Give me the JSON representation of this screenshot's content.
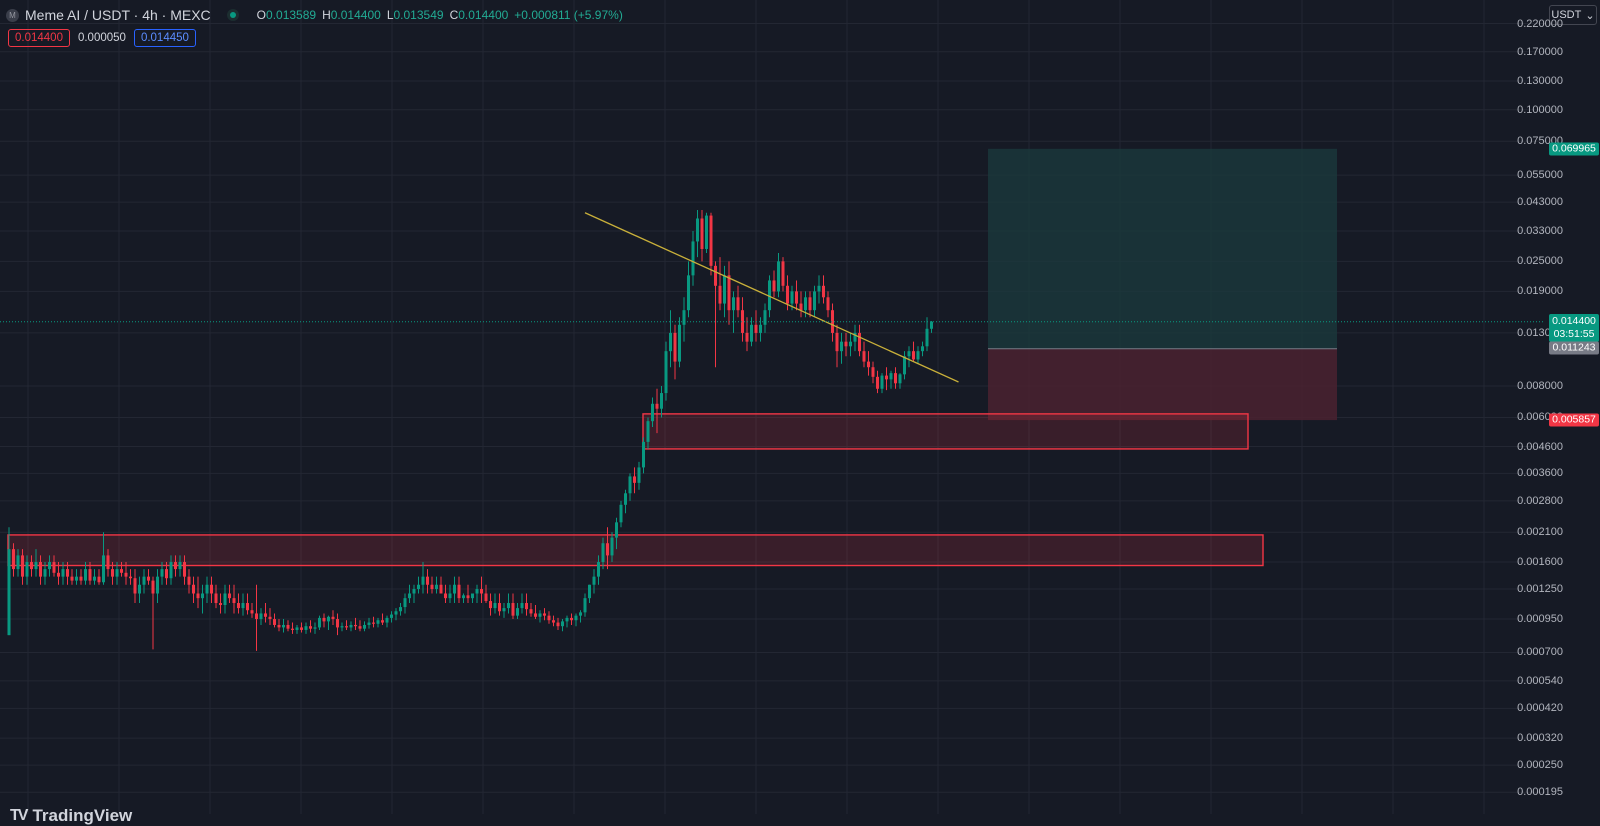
{
  "header": {
    "logo_letter": "M",
    "symbol_title": "Meme AI / USDT · 4h · MEXC",
    "ohlc": {
      "o_label": "O",
      "o_value": "0.013589",
      "h_label": "H",
      "h_value": "0.014400",
      "l_label": "L",
      "l_value": "0.013549",
      "c_label": "C",
      "c_value": "0.014400",
      "change": "+0.000811 (+5.97%)"
    }
  },
  "trade": {
    "sell_price": "0.014400",
    "spread": "0.000050",
    "buy_price": "0.014450"
  },
  "currency": {
    "label": "USDT",
    "arrow": "⌄"
  },
  "watermark": {
    "text": "TradingView"
  },
  "price_axis": {
    "labels": [
      "0.220000",
      "0.170000",
      "0.130000",
      "0.100000",
      "0.075000",
      "0.055000",
      "0.043000",
      "0.033000",
      "0.025000",
      "0.019000",
      "0.013000",
      "0.008000",
      "0.006000",
      "0.004600",
      "0.003600",
      "0.002800",
      "0.002100",
      "0.001600",
      "0.001250",
      "0.000950",
      "0.000700",
      "0.000540",
      "0.000420",
      "0.000320",
      "0.000250",
      "0.000195"
    ],
    "tags": {
      "target": "0.069965",
      "last_price": "0.014400",
      "countdown": "03:51:55",
      "entry": "0.011243",
      "stop": "0.005857"
    }
  },
  "colors": {
    "background": "#161a25",
    "up": "#089981",
    "down": "#f23645",
    "trendline": "#c9b03a",
    "zone_stroke": "#f23645",
    "profit_zone": "#1b3b3e",
    "loss_zone": "#4a2230"
  },
  "chart_data": {
    "type": "candlestick",
    "scale": "log",
    "ylim": [
      0.000185,
      0.24
    ],
    "candles": [
      [
        0.00082,
        0.0022,
        0.00082,
        0.0018
      ],
      [
        0.0018,
        0.0019,
        0.0014,
        0.0015
      ],
      [
        0.0015,
        0.0018,
        0.0014,
        0.0017
      ],
      [
        0.0017,
        0.0018,
        0.0013,
        0.0014
      ],
      [
        0.0014,
        0.0017,
        0.0013,
        0.0016
      ],
      [
        0.0016,
        0.0017,
        0.0014,
        0.0015
      ],
      [
        0.0015,
        0.0018,
        0.0014,
        0.0016
      ],
      [
        0.0016,
        0.0017,
        0.0013,
        0.0014
      ],
      [
        0.0014,
        0.0016,
        0.0013,
        0.0015
      ],
      [
        0.0015,
        0.0017,
        0.0014,
        0.0016
      ],
      [
        0.0016,
        0.0017,
        0.0014,
        0.00145
      ],
      [
        0.00145,
        0.0016,
        0.0013,
        0.0014
      ],
      [
        0.0014,
        0.0016,
        0.0013,
        0.0015
      ],
      [
        0.0015,
        0.0016,
        0.0013,
        0.0014
      ],
      [
        0.0014,
        0.0015,
        0.0013,
        0.00135
      ],
      [
        0.00135,
        0.0015,
        0.0013,
        0.0014
      ],
      [
        0.0014,
        0.0015,
        0.0013,
        0.00135
      ],
      [
        0.00135,
        0.0016,
        0.0013,
        0.0015
      ],
      [
        0.0015,
        0.0016,
        0.0013,
        0.00135
      ],
      [
        0.00135,
        0.0015,
        0.0013,
        0.0014
      ],
      [
        0.0014,
        0.0015,
        0.0013,
        0.00133
      ],
      [
        0.00133,
        0.0021,
        0.0013,
        0.0017
      ],
      [
        0.0017,
        0.0018,
        0.0014,
        0.0015
      ],
      [
        0.0015,
        0.0016,
        0.0013,
        0.0014
      ],
      [
        0.0014,
        0.0016,
        0.0013,
        0.0015
      ],
      [
        0.0015,
        0.0016,
        0.0014,
        0.00145
      ],
      [
        0.00145,
        0.0016,
        0.0013,
        0.0014
      ],
      [
        0.0014,
        0.0015,
        0.0013,
        0.00138
      ],
      [
        0.00138,
        0.0015,
        0.0011,
        0.0012
      ],
      [
        0.0012,
        0.0014,
        0.0011,
        0.0013
      ],
      [
        0.0013,
        0.0015,
        0.0012,
        0.0014
      ],
      [
        0.0014,
        0.0015,
        0.0013,
        0.00135
      ],
      [
        0.00135,
        0.0014,
        0.00072,
        0.0012
      ],
      [
        0.0012,
        0.0015,
        0.0011,
        0.0014
      ],
      [
        0.0014,
        0.0016,
        0.0013,
        0.0015
      ],
      [
        0.0015,
        0.0016,
        0.0013,
        0.00138
      ],
      [
        0.00138,
        0.0017,
        0.0013,
        0.0016
      ],
      [
        0.0016,
        0.0017,
        0.0014,
        0.0015
      ],
      [
        0.0015,
        0.0017,
        0.0014,
        0.0016
      ],
      [
        0.0016,
        0.0017,
        0.0013,
        0.0014
      ],
      [
        0.0014,
        0.0015,
        0.0012,
        0.0013
      ],
      [
        0.0013,
        0.0014,
        0.0011,
        0.0012
      ],
      [
        0.0012,
        0.0014,
        0.00105,
        0.00115
      ],
      [
        0.00115,
        0.0013,
        0.001,
        0.0012
      ],
      [
        0.0012,
        0.0014,
        0.0011,
        0.0013
      ],
      [
        0.0013,
        0.0014,
        0.0011,
        0.0012
      ],
      [
        0.0012,
        0.0013,
        0.00105,
        0.0011
      ],
      [
        0.0011,
        0.0012,
        0.001,
        0.00108
      ],
      [
        0.00108,
        0.0013,
        0.001,
        0.0012
      ],
      [
        0.0012,
        0.0013,
        0.0011,
        0.00115
      ],
      [
        0.00115,
        0.0013,
        0.001,
        0.0011
      ],
      [
        0.0011,
        0.0012,
        0.001,
        0.00105
      ],
      [
        0.00105,
        0.0012,
        0.00098,
        0.0011
      ],
      [
        0.0011,
        0.0012,
        0.00099,
        0.00103
      ],
      [
        0.00103,
        0.0011,
        0.00096,
        0.001
      ],
      [
        0.001,
        0.0013,
        0.00071,
        0.00095
      ],
      [
        0.00095,
        0.00105,
        0.0009,
        0.001
      ],
      [
        0.001,
        0.0011,
        0.00092,
        0.00097
      ],
      [
        0.00097,
        0.00105,
        0.0009,
        0.00095
      ],
      [
        0.00095,
        0.001,
        0.00088,
        0.0009
      ],
      [
        0.0009,
        0.00095,
        0.00085,
        0.00088
      ],
      [
        0.00088,
        0.00095,
        0.00084,
        0.0009
      ],
      [
        0.0009,
        0.00094,
        0.00085,
        0.00087
      ],
      [
        0.00087,
        0.00092,
        0.00083,
        0.00086
      ],
      [
        0.00086,
        0.0009,
        0.00083,
        0.00088
      ],
      [
        0.00088,
        0.00092,
        0.00084,
        0.00086
      ],
      [
        0.00086,
        0.00092,
        0.00083,
        0.00089
      ],
      [
        0.00089,
        0.00094,
        0.00084,
        0.00087
      ],
      [
        0.00087,
        0.00092,
        0.00083,
        0.00088
      ],
      [
        0.00088,
        0.00098,
        0.00086,
        0.00096
      ],
      [
        0.00096,
        0.001,
        0.00088,
        0.00093
      ],
      [
        0.00093,
        0.00098,
        0.00086,
        0.00097
      ],
      [
        0.00097,
        0.00103,
        0.0009,
        0.00095
      ],
      [
        0.00095,
        0.001,
        0.00082,
        0.00088
      ],
      [
        0.00088,
        0.00092,
        0.00085,
        0.00089
      ],
      [
        0.00089,
        0.00094,
        0.00086,
        0.00088
      ],
      [
        0.00088,
        0.00093,
        0.00085,
        0.0009
      ],
      [
        0.0009,
        0.00096,
        0.00086,
        0.00089
      ],
      [
        0.00089,
        0.00094,
        0.00085,
        0.00087
      ],
      [
        0.00087,
        0.00093,
        0.00085,
        0.0009
      ],
      [
        0.0009,
        0.00096,
        0.00087,
        0.00092
      ],
      [
        0.00092,
        0.00097,
        0.00088,
        0.00091
      ],
      [
        0.00091,
        0.00096,
        0.00088,
        0.00094
      ],
      [
        0.00094,
        0.001,
        0.0009,
        0.00092
      ],
      [
        0.00092,
        0.00098,
        0.00088,
        0.00096
      ],
      [
        0.00096,
        0.00102,
        0.00092,
        0.00099
      ],
      [
        0.00099,
        0.00105,
        0.00094,
        0.00102
      ],
      [
        0.00102,
        0.0011,
        0.00098,
        0.00106
      ],
      [
        0.00106,
        0.0012,
        0.001,
        0.00115
      ],
      [
        0.00115,
        0.0013,
        0.0011,
        0.0012
      ],
      [
        0.0012,
        0.0013,
        0.0011,
        0.00125
      ],
      [
        0.00125,
        0.0014,
        0.0012,
        0.0013
      ],
      [
        0.0013,
        0.0016,
        0.0012,
        0.0014
      ],
      [
        0.0014,
        0.0015,
        0.0012,
        0.0013
      ],
      [
        0.0013,
        0.0014,
        0.0012,
        0.00125
      ],
      [
        0.00125,
        0.0014,
        0.0012,
        0.0013
      ],
      [
        0.0013,
        0.0014,
        0.0012,
        0.0012
      ],
      [
        0.0012,
        0.0013,
        0.0011,
        0.00115
      ],
      [
        0.00115,
        0.0013,
        0.0011,
        0.0012
      ],
      [
        0.0012,
        0.0014,
        0.0011,
        0.0013
      ],
      [
        0.0013,
        0.0014,
        0.0011,
        0.00115
      ],
      [
        0.00115,
        0.0012,
        0.0011,
        0.00118
      ],
      [
        0.00118,
        0.0013,
        0.0011,
        0.00115
      ],
      [
        0.00115,
        0.0012,
        0.0011,
        0.0012
      ],
      [
        0.0012,
        0.0013,
        0.0011,
        0.00125
      ],
      [
        0.00125,
        0.0014,
        0.0011,
        0.0012
      ],
      [
        0.0012,
        0.0013,
        0.0011,
        0.00112
      ],
      [
        0.00112,
        0.0012,
        0.00098,
        0.00105
      ],
      [
        0.00105,
        0.0012,
        0.001,
        0.0011
      ],
      [
        0.0011,
        0.0012,
        0.00098,
        0.00102
      ],
      [
        0.00102,
        0.0011,
        0.00096,
        0.00105
      ],
      [
        0.00105,
        0.0012,
        0.001,
        0.0011
      ],
      [
        0.0011,
        0.0012,
        0.00095,
        0.00098
      ],
      [
        0.00098,
        0.0011,
        0.00095,
        0.00105
      ],
      [
        0.00105,
        0.0012,
        0.001,
        0.0011
      ],
      [
        0.0011,
        0.0012,
        0.00098,
        0.00104
      ],
      [
        0.00104,
        0.0011,
        0.00097,
        0.001
      ],
      [
        0.001,
        0.00108,
        0.00095,
        0.00097
      ],
      [
        0.00097,
        0.00103,
        0.00092,
        0.001
      ],
      [
        0.001,
        0.00105,
        0.00094,
        0.00098
      ],
      [
        0.00098,
        0.00102,
        0.00091,
        0.00094
      ],
      [
        0.00094,
        0.00098,
        0.00089,
        0.00092
      ],
      [
        0.00092,
        0.00096,
        0.00086,
        0.00089
      ],
      [
        0.00089,
        0.00095,
        0.00085,
        0.00093
      ],
      [
        0.00093,
        0.00098,
        0.00088,
        0.00096
      ],
      [
        0.00096,
        0.001,
        0.0009,
        0.00094
      ],
      [
        0.00094,
        0.001,
        0.00089,
        0.00098
      ],
      [
        0.00098,
        0.00103,
        0.00092,
        0.00101
      ],
      [
        0.00101,
        0.0012,
        0.00097,
        0.00115
      ],
      [
        0.00115,
        0.0013,
        0.0011,
        0.0013
      ],
      [
        0.0013,
        0.0015,
        0.0012,
        0.0014
      ],
      [
        0.0014,
        0.0017,
        0.0013,
        0.0016
      ],
      [
        0.0016,
        0.002,
        0.0015,
        0.0019
      ],
      [
        0.0019,
        0.0022,
        0.0015,
        0.0017
      ],
      [
        0.0017,
        0.0021,
        0.0016,
        0.002
      ],
      [
        0.002,
        0.0024,
        0.0018,
        0.0023
      ],
      [
        0.0023,
        0.0028,
        0.0022,
        0.0027
      ],
      [
        0.0027,
        0.0031,
        0.0025,
        0.003
      ],
      [
        0.003,
        0.0036,
        0.0028,
        0.0035
      ],
      [
        0.0035,
        0.0038,
        0.003,
        0.0033
      ],
      [
        0.0033,
        0.004,
        0.0031,
        0.0038
      ],
      [
        0.0038,
        0.005,
        0.0036,
        0.0048
      ],
      [
        0.0048,
        0.006,
        0.0045,
        0.0058
      ],
      [
        0.0058,
        0.0072,
        0.0055,
        0.0068
      ],
      [
        0.0068,
        0.0078,
        0.0052,
        0.0065
      ],
      [
        0.0065,
        0.008,
        0.006,
        0.0075
      ],
      [
        0.0075,
        0.012,
        0.007,
        0.011
      ],
      [
        0.011,
        0.016,
        0.0095,
        0.013
      ],
      [
        0.013,
        0.014,
        0.0085,
        0.01
      ],
      [
        0.01,
        0.015,
        0.0095,
        0.014
      ],
      [
        0.014,
        0.018,
        0.012,
        0.016
      ],
      [
        0.016,
        0.025,
        0.015,
        0.022
      ],
      [
        0.022,
        0.033,
        0.02,
        0.03
      ],
      [
        0.03,
        0.04,
        0.026,
        0.037
      ],
      [
        0.037,
        0.04,
        0.025,
        0.028
      ],
      [
        0.028,
        0.039,
        0.027,
        0.038
      ],
      [
        0.038,
        0.039,
        0.022,
        0.024
      ],
      [
        0.024,
        0.025,
        0.0095,
        0.02
      ],
      [
        0.02,
        0.026,
        0.016,
        0.017
      ],
      [
        0.017,
        0.024,
        0.015,
        0.022
      ],
      [
        0.022,
        0.025,
        0.014,
        0.016
      ],
      [
        0.016,
        0.019,
        0.013,
        0.018
      ],
      [
        0.018,
        0.02,
        0.015,
        0.016
      ],
      [
        0.016,
        0.018,
        0.012,
        0.013
      ],
      [
        0.013,
        0.015,
        0.011,
        0.012
      ],
      [
        0.012,
        0.015,
        0.0115,
        0.014
      ],
      [
        0.014,
        0.016,
        0.012,
        0.013
      ],
      [
        0.013,
        0.015,
        0.012,
        0.014
      ],
      [
        0.014,
        0.017,
        0.013,
        0.016
      ],
      [
        0.016,
        0.022,
        0.015,
        0.021
      ],
      [
        0.021,
        0.023,
        0.018,
        0.019
      ],
      [
        0.019,
        0.027,
        0.018,
        0.025
      ],
      [
        0.025,
        0.026,
        0.019,
        0.02
      ],
      [
        0.02,
        0.022,
        0.016,
        0.017
      ],
      [
        0.017,
        0.02,
        0.016,
        0.019
      ],
      [
        0.019,
        0.021,
        0.016,
        0.017
      ],
      [
        0.017,
        0.019,
        0.015,
        0.016
      ],
      [
        0.016,
        0.019,
        0.015,
        0.018
      ],
      [
        0.018,
        0.019,
        0.015,
        0.016
      ],
      [
        0.016,
        0.02,
        0.015,
        0.019
      ],
      [
        0.019,
        0.022,
        0.017,
        0.02
      ],
      [
        0.02,
        0.022,
        0.017,
        0.018
      ],
      [
        0.018,
        0.019,
        0.015,
        0.016
      ],
      [
        0.016,
        0.017,
        0.012,
        0.013
      ],
      [
        0.013,
        0.014,
        0.0095,
        0.011
      ],
      [
        0.011,
        0.013,
        0.0098,
        0.012
      ],
      [
        0.012,
        0.013,
        0.0105,
        0.0115
      ],
      [
        0.0115,
        0.013,
        0.0105,
        0.012
      ],
      [
        0.012,
        0.014,
        0.011,
        0.013
      ],
      [
        0.013,
        0.014,
        0.0105,
        0.011
      ],
      [
        0.011,
        0.012,
        0.0095,
        0.01
      ],
      [
        0.01,
        0.011,
        0.0088,
        0.0095
      ],
      [
        0.0095,
        0.01,
        0.0082,
        0.0087
      ],
      [
        0.0087,
        0.0092,
        0.0075,
        0.0078
      ],
      [
        0.0078,
        0.009,
        0.0075,
        0.0088
      ],
      [
        0.0088,
        0.0095,
        0.0077,
        0.0085
      ],
      [
        0.0085,
        0.0092,
        0.0078,
        0.009
      ],
      [
        0.009,
        0.0095,
        0.0078,
        0.0082
      ],
      [
        0.0082,
        0.009,
        0.0078,
        0.0089
      ],
      [
        0.0089,
        0.011,
        0.0085,
        0.0105
      ],
      [
        0.0105,
        0.0115,
        0.0095,
        0.011
      ],
      [
        0.011,
        0.012,
        0.01,
        0.0102
      ],
      [
        0.0102,
        0.0115,
        0.0098,
        0.011
      ],
      [
        0.011,
        0.012,
        0.0105,
        0.0115
      ],
      [
        0.0115,
        0.015,
        0.011,
        0.0135
      ],
      [
        0.0135,
        0.0145,
        0.013,
        0.0144
      ]
    ],
    "zones": [
      {
        "low": 0.0045,
        "high": 0.0062
      },
      {
        "low": 0.00155,
        "high": 0.00205
      }
    ],
    "trendline": {
      "from_candle": 128,
      "from_price": 0.039,
      "to_candle": 211,
      "to_price": 0.0083
    },
    "position": {
      "entry": 0.011243,
      "target": 0.069965,
      "stop": 0.005857
    }
  }
}
